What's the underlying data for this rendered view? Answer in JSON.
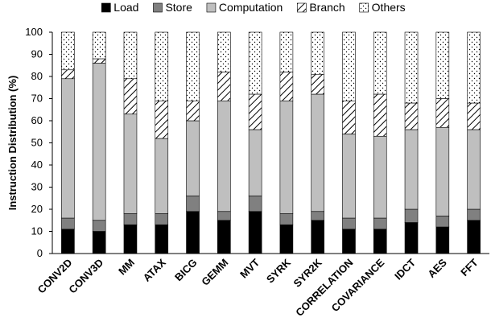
{
  "chart_data": {
    "type": "bar",
    "stacked": true,
    "title": "",
    "xlabel": "",
    "ylabel": "Instruction Distribution (%)",
    "ylim": [
      0,
      100
    ],
    "yticks": [
      0,
      10,
      20,
      30,
      40,
      50,
      60,
      70,
      80,
      90,
      100
    ],
    "grid": false,
    "legend_position": "top",
    "categories": [
      "CONV2D",
      "CONV3D",
      "MM",
      "ATAX",
      "BICG",
      "GEMM",
      "MVT",
      "SYRK",
      "SYR2K",
      "CORRELATION",
      "COVARIANCE",
      "IDCT",
      "AES",
      "FFT"
    ],
    "series": [
      {
        "name": "Load",
        "pattern": "solid-black",
        "values": [
          11,
          10,
          13,
          13,
          19,
          15,
          19,
          13,
          15,
          11,
          11,
          14,
          12,
          15
        ]
      },
      {
        "name": "Store",
        "pattern": "solid-dark-gray",
        "values": [
          5,
          5,
          5,
          5,
          7,
          4,
          7,
          5,
          4,
          5,
          5,
          6,
          5,
          5
        ]
      },
      {
        "name": "Computation",
        "pattern": "solid-light-gray",
        "values": [
          63,
          71,
          45,
          34,
          34,
          50,
          30,
          51,
          53,
          38,
          37,
          36,
          40,
          36
        ]
      },
      {
        "name": "Branch",
        "pattern": "diagonal-hatch",
        "values": [
          4,
          2,
          16,
          17,
          9,
          13,
          16,
          13,
          9,
          15,
          19,
          12,
          13,
          12
        ]
      },
      {
        "name": "Others",
        "pattern": "dots",
        "values": [
          17,
          12,
          21,
          31,
          31,
          18,
          28,
          18,
          19,
          31,
          28,
          32,
          30,
          32
        ]
      }
    ]
  }
}
